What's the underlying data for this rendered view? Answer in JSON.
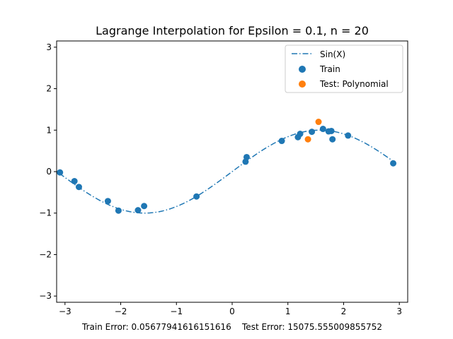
{
  "chart_data": {
    "type": "scatter",
    "title": "Lagrange Interpolation for Epsilon = 0.1, n = 20",
    "xlabel": "Train Error: 0.05677941616151616    Test Error: 15075.555009855752",
    "ylabel": "",
    "xlim": [
      -3.15,
      3.15
    ],
    "ylim": [
      -3.15,
      3.15
    ],
    "xticks": [
      -3,
      -2,
      -1,
      0,
      1,
      2,
      3
    ],
    "yticks": [
      -3,
      -2,
      -1,
      0,
      1,
      2,
      3
    ],
    "curve": {
      "name": "Sin(X)",
      "function": "sin",
      "x_range": [
        -3.1,
        2.9
      ],
      "style": "dash-dot",
      "color": "#1f77b4"
    },
    "series": [
      {
        "name": "Train",
        "color": "#1f77b4",
        "points": [
          [
            -3.09,
            -0.02
          ],
          [
            -2.83,
            -0.23
          ],
          [
            -2.75,
            -0.37
          ],
          [
            -2.23,
            -0.71
          ],
          [
            -2.04,
            -0.94
          ],
          [
            -1.69,
            -0.93
          ],
          [
            -1.58,
            -0.83
          ],
          [
            -0.64,
            -0.6
          ],
          [
            0.24,
            0.24
          ],
          [
            0.26,
            0.35
          ],
          [
            0.89,
            0.74
          ],
          [
            1.18,
            0.83
          ],
          [
            1.22,
            0.91
          ],
          [
            1.43,
            0.96
          ],
          [
            1.63,
            1.03
          ],
          [
            1.73,
            0.97
          ],
          [
            1.78,
            0.98
          ],
          [
            1.8,
            0.78
          ],
          [
            2.08,
            0.87
          ],
          [
            2.89,
            0.2
          ]
        ]
      },
      {
        "name": "Test: Polynomial",
        "color": "#ff7f0e",
        "points": [
          [
            1.36,
            0.78
          ],
          [
            1.55,
            1.2
          ]
        ]
      }
    ],
    "legend": {
      "position": "upper right",
      "entries": [
        "Sin(X)",
        "Train",
        "Test: Polynomial"
      ]
    }
  }
}
